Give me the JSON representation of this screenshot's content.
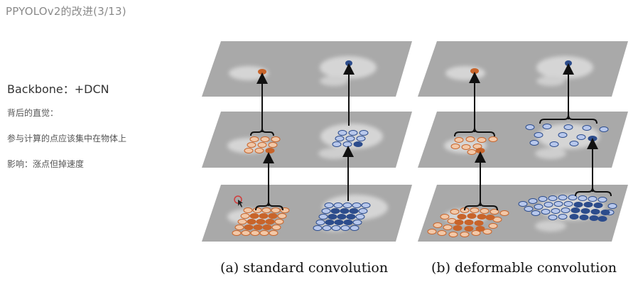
{
  "slide": {
    "title": "PPYOLOv2的改进(3/13)"
  },
  "notes": {
    "backbone": "Backbone：+DCN",
    "intuition_label": "背后的直觉：",
    "intuition_text": "参与计算的点应该集中在物体上",
    "impact": "影响：涨点但掉速度"
  },
  "figure": {
    "caption_a": "(a) standard convolution",
    "caption_b": "(b) deformable convolution",
    "colors": {
      "orange_fill": "#c8642a",
      "orange_light": "#f2c8a8",
      "blue_fill": "#2c4c8c",
      "blue_light": "#b8c8ec",
      "plane": "#a6a6a6",
      "cursor_ring": "#d23c3c"
    }
  }
}
